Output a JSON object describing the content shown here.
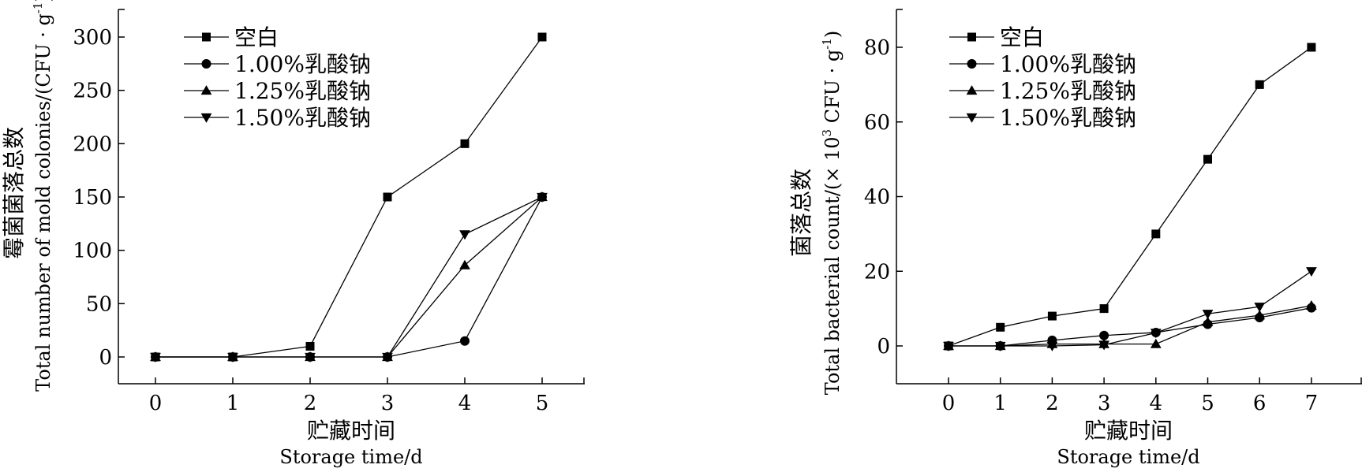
{
  "chart_data": [
    {
      "type": "line",
      "x": [
        0,
        1,
        2,
        3,
        4,
        5
      ],
      "series": [
        {
          "name": "空白",
          "marker": "square",
          "values": [
            0,
            0,
            10,
            150,
            200,
            300
          ]
        },
        {
          "name": "1.00%乳酸钠",
          "marker": "circle",
          "values": [
            0,
            0,
            0,
            0,
            15,
            150
          ]
        },
        {
          "name": "1.25%乳酸钠",
          "marker": "triangle-up",
          "values": [
            0,
            0,
            0,
            0,
            86,
            150
          ]
        },
        {
          "name": "1.50%乳酸钠",
          "marker": "triangle-down",
          "values": [
            0,
            0,
            0,
            0,
            115,
            150
          ]
        }
      ],
      "xlabel_cn": "贮藏时间",
      "xlabel_en": "Storage time/d",
      "ylabel_cn": "霉菌菌落总数",
      "ylabel_en_main": "Total number of mold colonies/(CFU · g",
      "ylabel_en_sup": "-1",
      "ylabel_en_end": ")",
      "xticks": [
        "0",
        "1",
        "2",
        "3",
        "4",
        "5"
      ],
      "yticks": [
        "0",
        "50",
        "100",
        "150",
        "200",
        "250",
        "300"
      ],
      "ylim": [
        -25,
        325
      ],
      "xlim": [
        -0.5,
        5.5
      ],
      "grid": false,
      "legend_position": "top-left"
    },
    {
      "type": "line",
      "x": [
        0,
        1,
        2,
        3,
        4,
        5,
        6,
        7
      ],
      "series": [
        {
          "name": "空白",
          "marker": "square",
          "values": [
            0,
            5,
            8,
            10,
            30,
            50,
            70,
            80
          ]
        },
        {
          "name": "1.00%乳酸钠",
          "marker": "circle",
          "values": [
            0,
            0,
            1.5,
            2.8,
            3.6,
            5.8,
            7.6,
            10.2
          ]
        },
        {
          "name": "1.25%乳酸钠",
          "marker": "triangle-up",
          "values": [
            0,
            0,
            0.5,
            0.5,
            0.5,
            6.4,
            8.2,
            10.8
          ]
        },
        {
          "name": "1.50%乳酸钠",
          "marker": "triangle-down",
          "values": [
            0,
            0,
            0,
            0.3,
            3.5,
            8.6,
            10.5,
            20
          ]
        }
      ],
      "xlabel_cn": "贮藏时间",
      "xlabel_en": "Storage time/d",
      "ylabel_cn": "菌落总数",
      "ylabel_en_a": "Total bacterial count/(× 10",
      "ylabel_en_sup1": "3",
      "ylabel_en_b": " CFU · g",
      "ylabel_en_sup2": "-1",
      "ylabel_en_end": ")",
      "xticks": [
        "0",
        "1",
        "2",
        "3",
        "4",
        "5",
        "6",
        "7"
      ],
      "yticks": [
        "0",
        "20",
        "40",
        "60",
        "80"
      ],
      "ylim": [
        -10,
        90
      ],
      "xlim": [
        -1,
        8
      ],
      "grid": false,
      "legend_position": "top-left"
    }
  ]
}
